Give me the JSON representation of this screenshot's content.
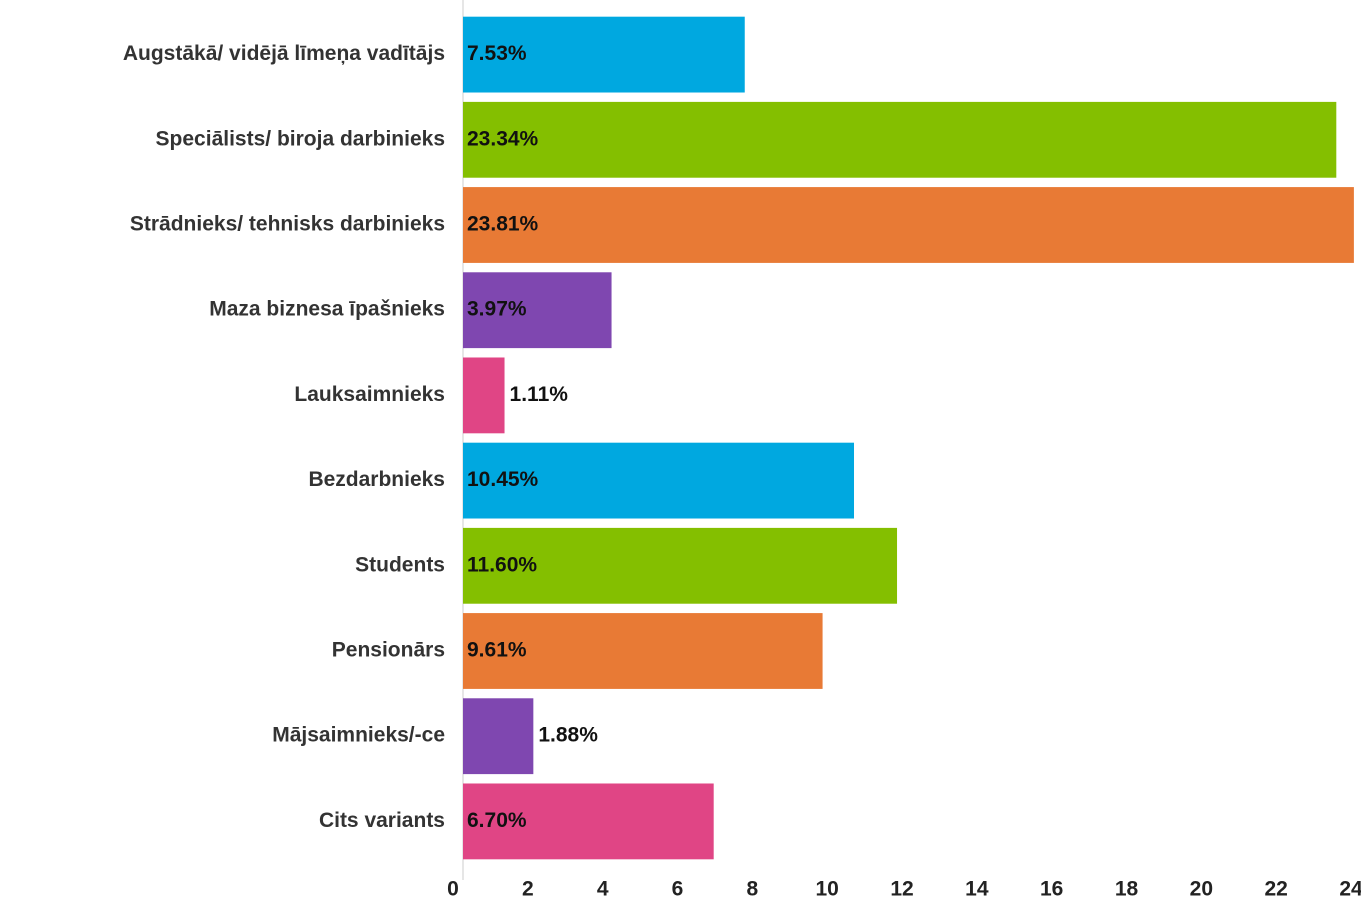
{
  "chart_data": {
    "type": "bar",
    "orientation": "horizontal",
    "categories": [
      "Augstākā/ vidējā līmeņa vadītājs",
      "Speciālists/ biroja darbinieks",
      "Strādnieks/ tehnisks darbinieks",
      "Maza biznesa īpašnieks",
      "Lauksaimnieks",
      "Bezdarbnieks",
      "Students",
      "Pensionārs",
      "Mājsaimnieks/-ce",
      "Cits variants"
    ],
    "values": [
      7.53,
      23.34,
      23.81,
      3.97,
      1.11,
      10.45,
      11.6,
      9.61,
      1.88,
      6.7
    ],
    "value_labels": [
      "7.53%",
      "23.34%",
      "23.81%",
      "3.97%",
      "1.11%",
      "10.45%",
      "11.60%",
      "9.61%",
      "1.88%",
      "6.70%"
    ],
    "colors": [
      "#00a8e0",
      "#84bf00",
      "#e87a35",
      "#7f47b0",
      "#e04585",
      "#00a8e0",
      "#84bf00",
      "#e87a35",
      "#7f47b0",
      "#e04585"
    ],
    "xlim": [
      0,
      24
    ],
    "xticks": [
      0,
      2,
      4,
      6,
      8,
      10,
      12,
      14,
      16,
      18,
      20,
      22,
      24
    ],
    "grid": false
  }
}
